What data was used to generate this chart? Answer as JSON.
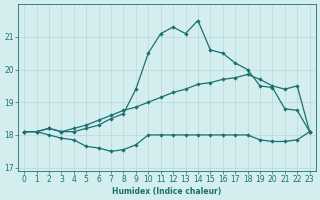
{
  "xlabel": "Humidex (Indice chaleur)",
  "x": [
    0,
    1,
    2,
    3,
    4,
    5,
    6,
    7,
    8,
    9,
    10,
    11,
    12,
    13,
    14,
    15,
    16,
    17,
    18,
    19,
    20,
    21,
    22,
    23
  ],
  "line_peak": [
    18.1,
    18.1,
    18.2,
    18.1,
    18.1,
    18.2,
    18.3,
    18.5,
    18.65,
    19.4,
    20.5,
    21.1,
    21.3,
    21.1,
    21.5,
    20.6,
    20.5,
    20.2,
    20.0,
    19.5,
    19.45,
    18.8,
    18.75,
    18.1
  ],
  "line_mean": [
    18.1,
    18.1,
    18.2,
    18.1,
    18.2,
    18.3,
    18.45,
    18.6,
    18.75,
    18.85,
    19.0,
    19.15,
    19.3,
    19.4,
    19.55,
    19.6,
    19.7,
    19.75,
    19.85,
    19.7,
    19.5,
    19.4,
    19.5,
    18.1
  ],
  "line_min": [
    18.1,
    18.1,
    18.0,
    17.9,
    17.85,
    17.65,
    17.6,
    17.5,
    17.55,
    17.7,
    18.0,
    18.0,
    18.0,
    18.0,
    18.0,
    18.0,
    18.0,
    18.0,
    18.0,
    17.85,
    17.8,
    17.8,
    17.85,
    18.1
  ],
  "line_color": "#1a7070",
  "bg_color": "#d4eef0",
  "grid_color": "#b8d8da",
  "ylim": [
    16.9,
    22.0
  ],
  "yticks": [
    17,
    18,
    19,
    20,
    21
  ],
  "xlim": [
    -0.5,
    23.5
  ],
  "figsize": [
    3.2,
    2.0
  ],
  "dpi": 100
}
